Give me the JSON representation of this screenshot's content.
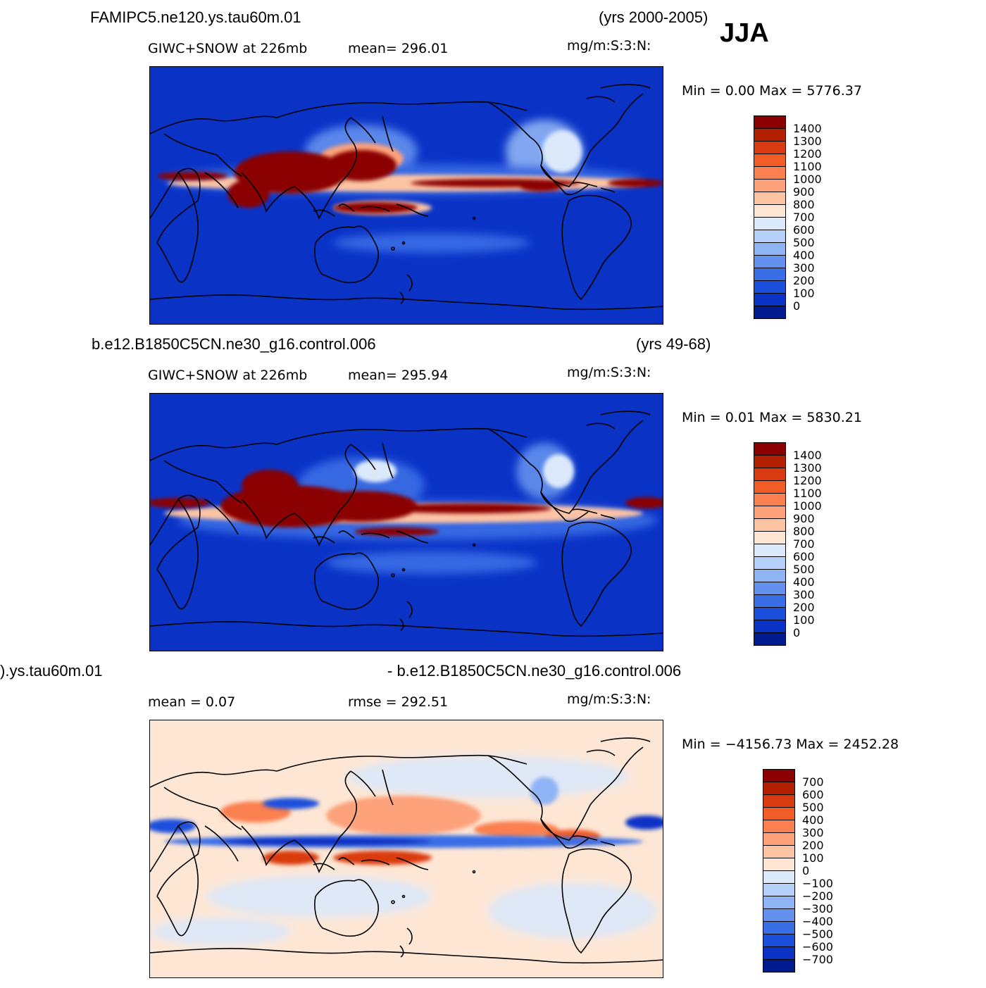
{
  "season": "JJA",
  "panels": [
    {
      "case": "FAMIPC5.ne120.ys.tau60m.01",
      "years": "(yrs 2000-2005)",
      "variable": "GIWC+SNOW at 226mb",
      "stat1": "mean= 296.01",
      "stat2": "",
      "units": "mg/m:S:3:N:",
      "minmax": "Min =    0.00  Max =  5776.37"
    },
    {
      "case": "b.e12.B1850C5CN.ne30_g16.control.006",
      "years": "(yrs 49-68)",
      "variable": "GIWC+SNOW at 226mb",
      "stat1": "mean= 295.94",
      "stat2": "",
      "units": "mg/m:S:3:N:",
      "minmax": "Min =    0.01  Max =  5830.21"
    },
    {
      "case": ").ys.tau60m.01",
      "years": "- b.e12.B1850C5CN.ne30_g16.control.006",
      "variable": "",
      "stat1": "mean =    0.07",
      "stat2": "rmse = 292.51",
      "units": "mg/m:S:3:N:",
      "minmax": "Min = −4156.73  Max =  2452.28"
    }
  ],
  "colorbar_main": {
    "labels": [
      "1400",
      "1300",
      "1200",
      "1100",
      "1000",
      "900",
      "800",
      "700",
      "600",
      "500",
      "400",
      "300",
      "200",
      "100",
      "0"
    ],
    "colors": [
      "#8b0000",
      "#b22000",
      "#d93a10",
      "#f25c25",
      "#fb8050",
      "#fda27a",
      "#fdc4a4",
      "#fde6d4",
      "#dce9fb",
      "#b5d0f9",
      "#8fb4f5",
      "#6491ee",
      "#3a6ee6",
      "#1a4fdb",
      "#0a33c6",
      "#001a8f"
    ]
  },
  "colorbar_diff": {
    "labels": [
      "700",
      "600",
      "500",
      "400",
      "300",
      "200",
      "100",
      "0",
      "−100",
      "−200",
      "−300",
      "−400",
      "−500",
      "−600",
      "−700"
    ],
    "colors": [
      "#8b0000",
      "#b22000",
      "#d93a10",
      "#f25c25",
      "#fb8050",
      "#fda27a",
      "#fdc4a4",
      "#fde6d4",
      "#dce9fb",
      "#b5d0f9",
      "#8fb4f5",
      "#6491ee",
      "#3a6ee6",
      "#1a4fdb",
      "#0a33c6",
      "#001a8f"
    ]
  },
  "colors": {
    "field_background": "#0a33c6",
    "diff_background": "#fde6d4",
    "coastline": "#000000"
  }
}
